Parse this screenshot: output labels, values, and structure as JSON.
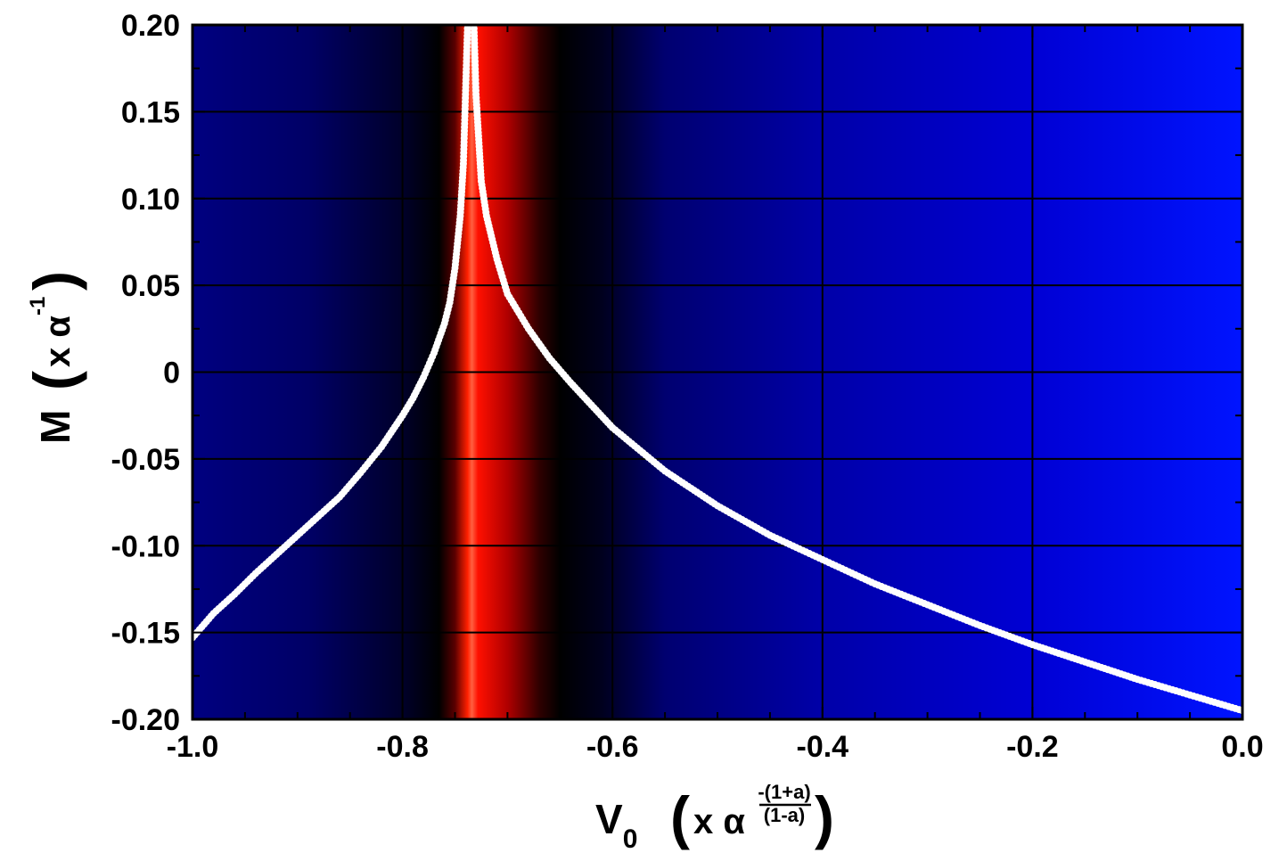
{
  "chart_data": {
    "type": "scatter",
    "title": "",
    "xlim": [
      -1.0,
      0.0
    ],
    "ylim": [
      -0.2,
      0.2
    ],
    "x_ticks": [
      "-1.0",
      "-0.8",
      "-0.6",
      "-0.4",
      "-0.2",
      "0.0"
    ],
    "x_tick_values": [
      -1.0,
      -0.8,
      -0.6,
      -0.4,
      -0.2,
      0.0
    ],
    "y_ticks": [
      "0.20",
      "0.15",
      "0.10",
      "0.05",
      "0",
      "-0.05",
      "-0.10",
      "-0.15",
      "-0.20"
    ],
    "y_tick_values": [
      0.2,
      0.15,
      0.1,
      0.05,
      0.0,
      -0.05,
      -0.1,
      -0.15,
      -0.2
    ],
    "xlabel": {
      "main": "V",
      "subscript": "0",
      "factor": "x α",
      "exponent_numerator": "-(1+a)",
      "exponent_denominator": "(1-a)"
    },
    "ylabel": {
      "main": "M",
      "factor": "x α",
      "exponent": "-1"
    },
    "grid": true,
    "background_heatmap": {
      "description_colors": {
        "blue_dark": "#00007a",
        "blue_bright": "#0010ff",
        "black": "#000000",
        "red": "#ff1000"
      },
      "peak_x": -0.735
    },
    "series": [
      {
        "color": "#ffffff",
        "marker": "circle",
        "left_branch": {
          "x": [
            -1.0,
            -0.98,
            -0.96,
            -0.94,
            -0.92,
            -0.9,
            -0.88,
            -0.86,
            -0.84,
            -0.82,
            -0.8,
            -0.79,
            -0.78,
            -0.77,
            -0.76,
            -0.755,
            -0.75,
            -0.745,
            -0.742,
            -0.74,
            -0.738
          ],
          "y": [
            -0.153,
            -0.139,
            -0.128,
            -0.116,
            -0.105,
            -0.094,
            -0.083,
            -0.072,
            -0.058,
            -0.043,
            -0.025,
            -0.015,
            -0.003,
            0.011,
            0.028,
            0.04,
            0.06,
            0.09,
            0.12,
            0.16,
            0.2
          ]
        },
        "right_branch": {
          "x": [
            -0.732,
            -0.73,
            -0.728,
            -0.725,
            -0.72,
            -0.71,
            -0.7,
            -0.68,
            -0.66,
            -0.64,
            -0.62,
            -0.6,
            -0.55,
            -0.5,
            -0.45,
            -0.4,
            -0.35,
            -0.3,
            -0.25,
            -0.2,
            -0.15,
            -0.1,
            -0.05,
            0.0
          ],
          "y": [
            0.2,
            0.16,
            0.14,
            0.11,
            0.09,
            0.065,
            0.045,
            0.025,
            0.008,
            -0.006,
            -0.019,
            -0.032,
            -0.057,
            -0.077,
            -0.094,
            -0.108,
            -0.122,
            -0.134,
            -0.146,
            -0.157,
            -0.167,
            -0.177,
            -0.186,
            -0.195
          ]
        }
      }
    ]
  }
}
